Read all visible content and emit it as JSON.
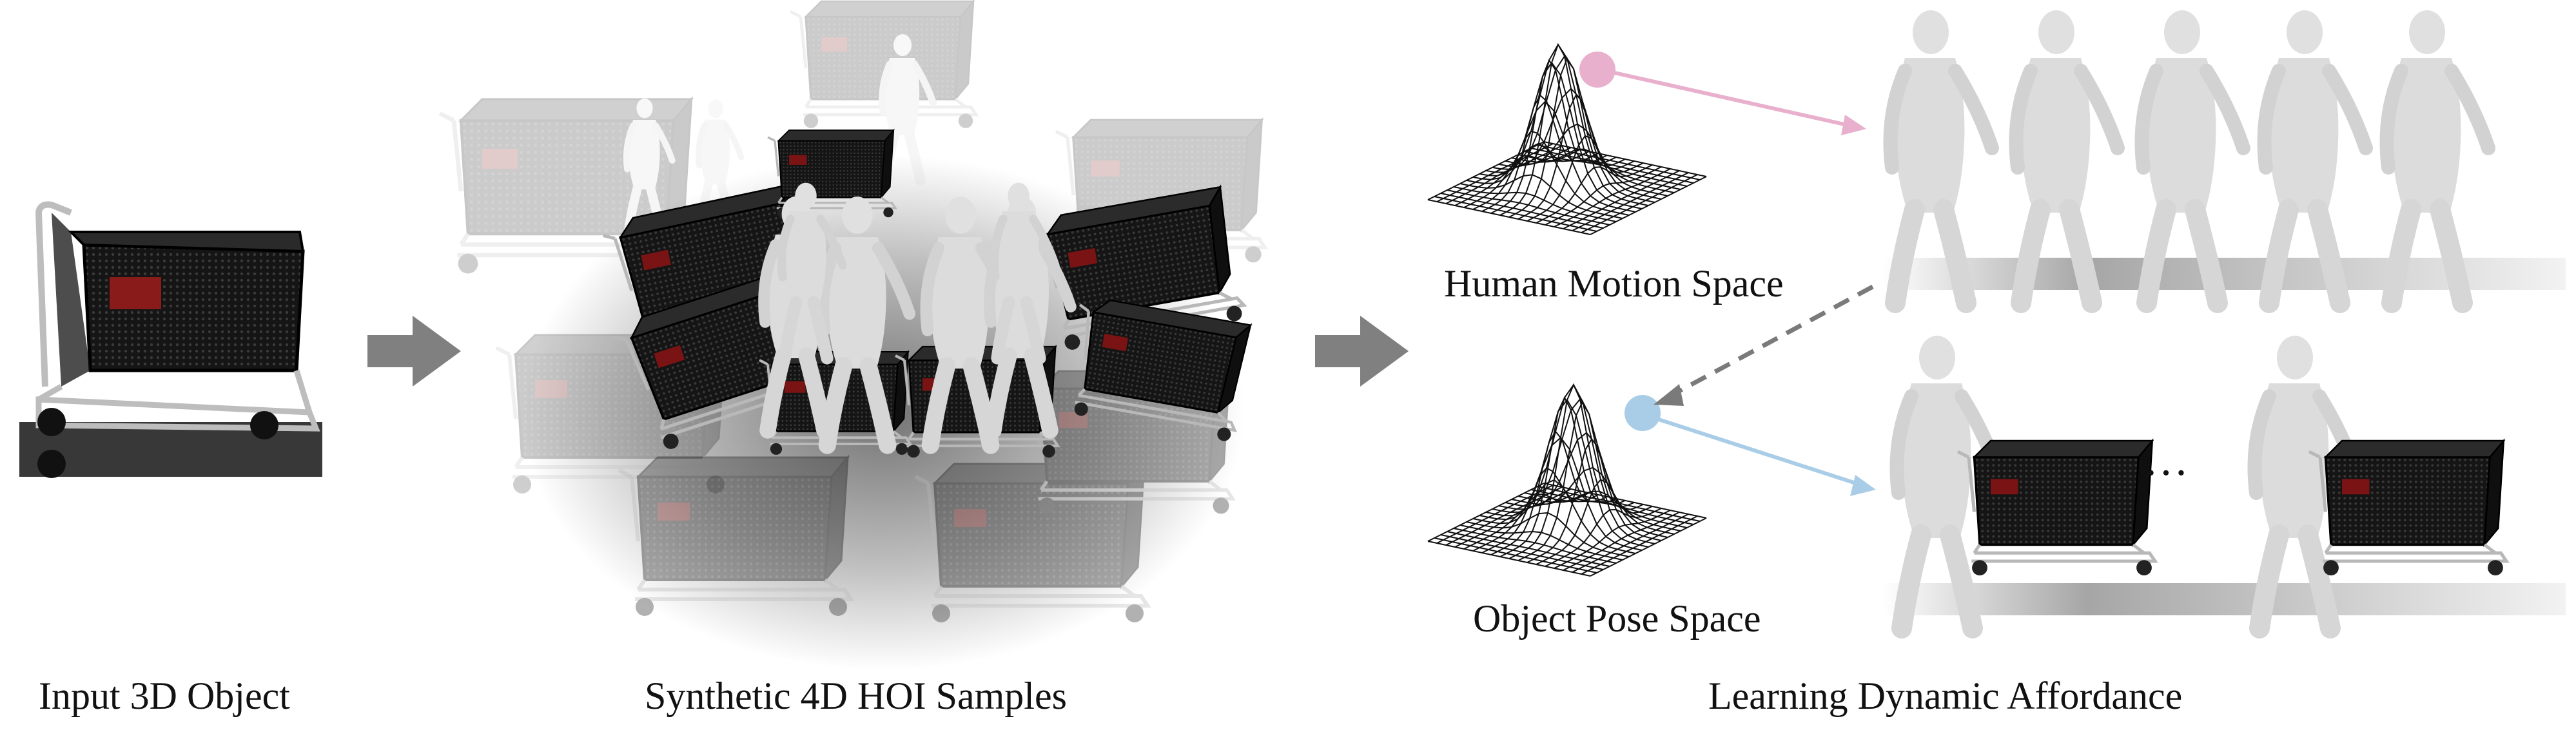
{
  "captions": {
    "input_object": "Input 3D Object",
    "synthetic_samples": "Synthetic 4D HOI Samples",
    "learning": "Learning Dynamic Affordance"
  },
  "spaces": {
    "human_motion": "Human Motion Space",
    "object_pose": "Object Pose Space"
  },
  "ellipsis": "…",
  "colors": {
    "flow_arrow": "#808080",
    "human_marker": "#e8b0cc",
    "object_marker": "#a9cde6",
    "dashed_arrow": "#7a7a7a",
    "cart_frame": "#b8b8b8",
    "cart_basket": "#1a1a1a",
    "human_figure": "#dddddd"
  }
}
